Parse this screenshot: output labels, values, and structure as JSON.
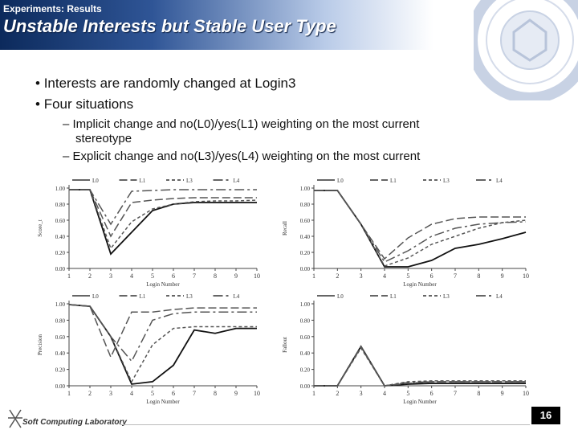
{
  "header": {
    "section": "Experiments: Results",
    "title": "Unstable Interests but Stable User Type"
  },
  "bullets": [
    {
      "text": "Interests are randomly changed at Login3"
    },
    {
      "text": "Four situations"
    }
  ],
  "subbullets": [
    {
      "line1": "Implicit change and no(L0)/yes(L1) weighting on the most current",
      "line2": "stereotype"
    },
    {
      "line1": "Explicit change and no(L3)/yes(L4) weighting on the most current",
      "line2": ""
    }
  ],
  "footer": {
    "lab": "Soft Computing Laboratory",
    "page": "16"
  },
  "chart_data": [
    {
      "type": "line",
      "legend": [
        "L0",
        "L1",
        "L3",
        "L4"
      ],
      "x": [
        1,
        2,
        3,
        4,
        5,
        6,
        7,
        8,
        9,
        10
      ],
      "xlabel": "Login Number",
      "ylabel": "Score_t",
      "ylim": [
        0,
        1
      ],
      "yticks": [
        "0.00",
        "0.20",
        "0.40",
        "0.60",
        "0.80",
        "1.00"
      ],
      "series": [
        {
          "name": "L0",
          "values": [
            0.98,
            0.98,
            0.18,
            0.45,
            0.72,
            0.8,
            0.82,
            0.82,
            0.82,
            0.82
          ]
        },
        {
          "name": "L1",
          "values": [
            0.98,
            0.98,
            0.4,
            0.82,
            0.85,
            0.87,
            0.88,
            0.88,
            0.88,
            0.88
          ]
        },
        {
          "name": "L3",
          "values": [
            0.98,
            0.98,
            0.25,
            0.58,
            0.74,
            0.8,
            0.83,
            0.84,
            0.84,
            0.85
          ]
        },
        {
          "name": "L4",
          "values": [
            0.98,
            0.98,
            0.55,
            0.96,
            0.97,
            0.98,
            0.98,
            0.98,
            0.98,
            0.98
          ]
        }
      ]
    },
    {
      "type": "line",
      "legend": [
        "L0",
        "L1",
        "L3",
        "L4"
      ],
      "x": [
        1,
        2,
        3,
        4,
        5,
        6,
        7,
        8,
        9,
        10
      ],
      "xlabel": "Login Number",
      "ylabel": "Recall",
      "ylim": [
        0,
        1
      ],
      "yticks": [
        "0.00",
        "0.20",
        "0.40",
        "0.60",
        "0.80",
        "1.00"
      ],
      "series": [
        {
          "name": "L0",
          "values": [
            0.97,
            0.97,
            0.55,
            0.02,
            0.02,
            0.1,
            0.25,
            0.3,
            0.37,
            0.45
          ]
        },
        {
          "name": "L1",
          "values": [
            0.97,
            0.97,
            0.55,
            0.12,
            0.38,
            0.55,
            0.62,
            0.64,
            0.64,
            0.64
          ]
        },
        {
          "name": "L3",
          "values": [
            0.97,
            0.97,
            0.55,
            0.03,
            0.13,
            0.3,
            0.4,
            0.5,
            0.57,
            0.6
          ]
        },
        {
          "name": "L4",
          "values": [
            0.97,
            0.97,
            0.55,
            0.08,
            0.22,
            0.4,
            0.5,
            0.55,
            0.57,
            0.58
          ]
        }
      ]
    },
    {
      "type": "line",
      "legend": [
        "L0",
        "L1",
        "L3",
        "L4"
      ],
      "x": [
        1,
        2,
        3,
        4,
        5,
        6,
        7,
        8,
        9,
        10
      ],
      "xlabel": "Login Number",
      "ylabel": "Precision",
      "ylim": [
        0,
        1
      ],
      "yticks": [
        "0.00",
        "0.20",
        "0.40",
        "0.60",
        "0.80",
        "1.00"
      ],
      "series": [
        {
          "name": "L0",
          "values": [
            0.99,
            0.97,
            0.6,
            0.02,
            0.05,
            0.25,
            0.68,
            0.64,
            0.7,
            0.7
          ]
        },
        {
          "name": "L1",
          "values": [
            0.99,
            0.97,
            0.35,
            0.9,
            0.9,
            0.93,
            0.95,
            0.95,
            0.95,
            0.95
          ]
        },
        {
          "name": "L3",
          "values": [
            0.99,
            0.97,
            0.6,
            0.05,
            0.5,
            0.7,
            0.72,
            0.72,
            0.72,
            0.72
          ]
        },
        {
          "name": "L4",
          "values": [
            0.99,
            0.97,
            0.6,
            0.3,
            0.8,
            0.88,
            0.9,
            0.9,
            0.9,
            0.9
          ]
        }
      ]
    },
    {
      "type": "line",
      "legend": [
        "L0",
        "L1",
        "L3",
        "L4"
      ],
      "x": [
        1,
        2,
        3,
        4,
        5,
        6,
        7,
        8,
        9,
        10
      ],
      "xlabel": "Login Number",
      "ylabel": "Fallout",
      "ylim": [
        0,
        1
      ],
      "yticks": [
        "0.00",
        "0.20",
        "0.40",
        "0.60",
        "0.80",
        "1.00"
      ],
      "series": [
        {
          "name": "L0",
          "values": [
            0.0,
            0.0,
            0.48,
            0.0,
            0.02,
            0.03,
            0.03,
            0.03,
            0.03,
            0.03
          ]
        },
        {
          "name": "L1",
          "values": [
            0.0,
            0.0,
            0.48,
            0.0,
            0.03,
            0.05,
            0.05,
            0.05,
            0.05,
            0.05
          ]
        },
        {
          "name": "L3",
          "values": [
            0.0,
            0.0,
            0.46,
            0.0,
            0.05,
            0.06,
            0.06,
            0.06,
            0.06,
            0.06
          ]
        },
        {
          "name": "L4",
          "values": [
            0.0,
            0.0,
            0.47,
            0.0,
            0.04,
            0.05,
            0.05,
            0.05,
            0.05,
            0.05
          ]
        }
      ]
    }
  ]
}
